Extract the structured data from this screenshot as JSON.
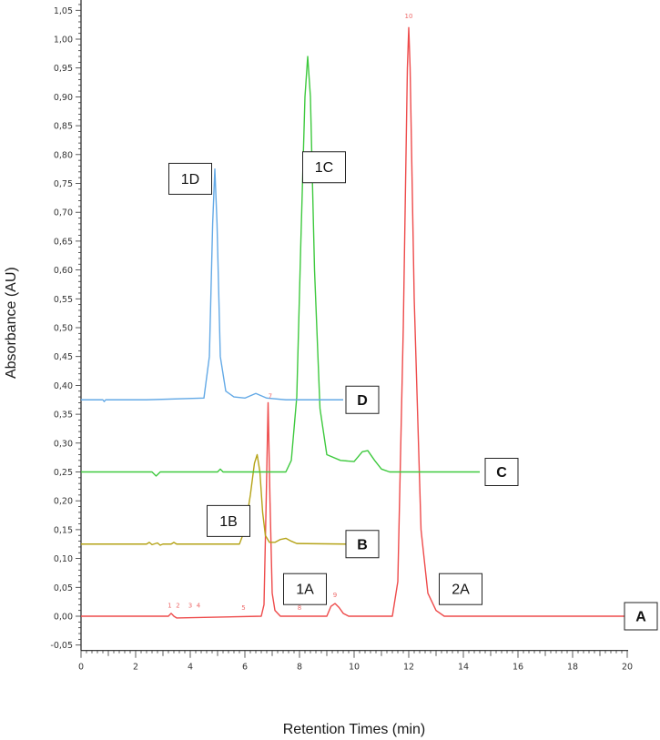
{
  "chart_data": {
    "type": "line",
    "xlabel": "Retention Times (min)",
    "ylabel": "Absorbance (AU)",
    "xlim": [
      0,
      20
    ],
    "ylim": [
      -0.05,
      1.07
    ],
    "x_ticks": [
      "0",
      "2",
      "4",
      "6",
      "8",
      "10",
      "12",
      "14",
      "16",
      "18",
      "20"
    ],
    "y_ticks": [
      "-0,05",
      "0,00",
      "0,05",
      "0,10",
      "0,15",
      "0,20",
      "0,25",
      "0,30",
      "0,35",
      "0,40",
      "0,45",
      "0,50",
      "0,55",
      "0,60",
      "0,65",
      "0,70",
      "0,75",
      "0,80",
      "0,85",
      "0,90",
      "0,95",
      "1,00",
      "1,05"
    ],
    "grid": false,
    "series": [
      {
        "name": "A",
        "color": "#ee4b4b",
        "x": [
          0,
          3.2,
          3.3,
          3.4,
          3.5,
          6.6,
          6.7,
          6.78,
          6.85,
          6.92,
          7.0,
          7.1,
          7.3,
          9.0,
          9.15,
          9.3,
          9.45,
          9.6,
          9.8,
          11.4,
          11.6,
          11.8,
          11.95,
          12.0,
          12.05,
          12.2,
          12.45,
          12.7,
          13.0,
          13.3,
          20
        ],
        "values": [
          0.0,
          0.0,
          0.005,
          0.0,
          -0.003,
          0.0,
          0.02,
          0.2,
          0.37,
          0.2,
          0.04,
          0.01,
          0.0,
          0.0,
          0.017,
          0.022,
          0.015,
          0.005,
          0.0,
          0.0,
          0.06,
          0.5,
          0.95,
          1.02,
          0.95,
          0.55,
          0.15,
          0.04,
          0.01,
          0.0,
          0.0
        ]
      },
      {
        "name": "B",
        "color": "#b5a317",
        "x": [
          0,
          2.4,
          2.5,
          2.6,
          2.8,
          2.9,
          3.0,
          3.3,
          3.4,
          3.5,
          5.8,
          6.0,
          6.2,
          6.35,
          6.45,
          6.55,
          6.65,
          6.75,
          6.9,
          7.1,
          7.3,
          7.5,
          7.7,
          7.9,
          9.7
        ],
        "values": [
          0.125,
          0.125,
          0.128,
          0.124,
          0.127,
          0.123,
          0.125,
          0.125,
          0.128,
          0.125,
          0.125,
          0.15,
          0.21,
          0.265,
          0.28,
          0.25,
          0.18,
          0.14,
          0.128,
          0.128,
          0.133,
          0.135,
          0.13,
          0.126,
          0.125
        ]
      },
      {
        "name": "C",
        "color": "#3ec93e",
        "x": [
          0,
          2.6,
          2.75,
          2.9,
          5.0,
          5.1,
          5.2,
          7.5,
          7.7,
          7.9,
          8.05,
          8.2,
          8.3,
          8.4,
          8.55,
          8.75,
          9.0,
          9.5,
          10.0,
          10.3,
          10.5,
          10.75,
          11.0,
          11.3,
          14.6
        ],
        "values": [
          0.25,
          0.25,
          0.243,
          0.25,
          0.25,
          0.255,
          0.25,
          0.25,
          0.27,
          0.38,
          0.65,
          0.9,
          0.97,
          0.9,
          0.6,
          0.36,
          0.28,
          0.27,
          0.268,
          0.285,
          0.287,
          0.27,
          0.255,
          0.25,
          0.25
        ]
      },
      {
        "name": "D",
        "color": "#63a9e6",
        "x": [
          0,
          0.8,
          0.85,
          0.9,
          2.4,
          4.5,
          4.7,
          4.82,
          4.9,
          4.98,
          5.1,
          5.3,
          5.6,
          6.0,
          6.4,
          6.8,
          7.5,
          9.6
        ],
        "values": [
          0.375,
          0.375,
          0.372,
          0.375,
          0.375,
          0.378,
          0.45,
          0.68,
          0.775,
          0.68,
          0.45,
          0.39,
          0.38,
          0.378,
          0.386,
          0.378,
          0.375,
          0.375
        ]
      }
    ],
    "annotations": [
      {
        "text": "1D",
        "x": 4.0,
        "y": 0.758
      },
      {
        "text": "1C",
        "x": 8.9,
        "y": 0.778
      },
      {
        "text": "1B",
        "x": 5.4,
        "y": 0.165
      },
      {
        "text": "1A",
        "x": 8.2,
        "y": 0.047
      },
      {
        "text": "2A",
        "x": 13.9,
        "y": 0.047
      }
    ],
    "series_labels": [
      {
        "text": "D",
        "x": 10.3,
        "y": 0.375
      },
      {
        "text": "C",
        "x": 15.4,
        "y": 0.25
      },
      {
        "text": "B",
        "x": 10.3,
        "y": 0.125
      },
      {
        "text": "A",
        "x": 20.5,
        "y": 0.0
      }
    ],
    "peak_markers": [
      {
        "text": "1",
        "x": 3.25,
        "y": 0.012
      },
      {
        "text": "2",
        "x": 3.55,
        "y": 0.012
      },
      {
        "text": "3",
        "x": 4.0,
        "y": 0.012
      },
      {
        "text": "4",
        "x": 4.3,
        "y": 0.012
      },
      {
        "text": "5",
        "x": 5.95,
        "y": 0.008
      },
      {
        "text": "7",
        "x": 6.93,
        "y": 0.375
      },
      {
        "text": "8",
        "x": 8.0,
        "y": 0.008
      },
      {
        "text": "9",
        "x": 9.3,
        "y": 0.03
      },
      {
        "text": "10",
        "x": 12.0,
        "y": 1.033
      }
    ]
  }
}
